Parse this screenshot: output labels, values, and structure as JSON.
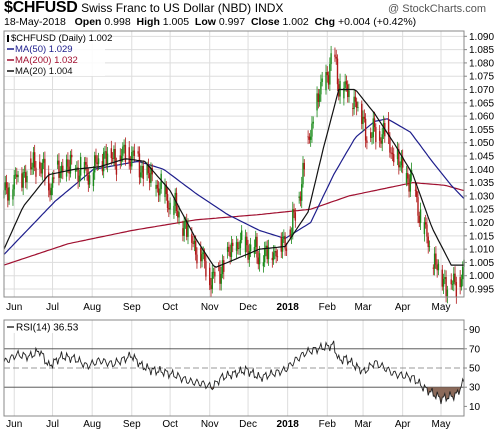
{
  "header": {
    "symbol": "$CHFUSD",
    "description": "Swiss Franc to US Dollar (NBD)",
    "exchange": "INDX",
    "credit": "@ StockCharts.com",
    "date": "18-May-2018",
    "open_label": "Open",
    "open": "0.998",
    "high_label": "High",
    "high": "1.005",
    "low_label": "Low",
    "low": "0.997",
    "close_label": "Close",
    "close": "1.002",
    "chg_label": "Chg",
    "chg": "+0.004 (+0.42%)"
  },
  "colors": {
    "ma50": "#1e1e8c",
    "ma200": "#a01030",
    "ma20": "#111111",
    "candle_up": "#1a8a1a",
    "candle_down": "#b01818",
    "rsi_fill_low": "#8b6a5a",
    "grid": "#dddddd",
    "rsi_line": "#222222"
  },
  "chart_data": [
    {
      "type": "candlestick",
      "title": "$CHFUSD (Daily) 1.002",
      "legend": [
        {
          "name": "$CHFUSD (Daily) 1.002",
          "color": "#000000"
        },
        {
          "name": "MA(50) 1.029",
          "color": "#1e1e8c"
        },
        {
          "name": "MA(200) 1.032",
          "color": "#a01030"
        },
        {
          "name": "MA(20) 1.004",
          "color": "#111111"
        }
      ],
      "legend_placement": "top-left",
      "y_axis": "right",
      "ylim": [
        0.992,
        1.092
      ],
      "y_ticks": [
        0.995,
        1.0,
        1.005,
        1.01,
        1.015,
        1.02,
        1.025,
        1.03,
        1.035,
        1.04,
        1.045,
        1.05,
        1.055,
        1.06,
        1.065,
        1.07,
        1.075,
        1.08,
        1.085,
        1.09
      ],
      "y_tick_labels": [
        "0.995",
        "1.000",
        "1.005",
        "1.010",
        "1.015",
        "1.020",
        "1.025",
        "1.030",
        "1.035",
        "1.040",
        "1.045",
        "1.050",
        "1.055",
        "1.060",
        "1.065",
        "1.070",
        "1.075",
        "1.080",
        "1.085",
        "1.090"
      ],
      "x_labels": [
        {
          "label": "Jun",
          "day": 8
        },
        {
          "label": "Jul",
          "day": 38
        },
        {
          "label": "Aug",
          "day": 69
        },
        {
          "label": "Sep",
          "day": 100
        },
        {
          "label": "Oct",
          "day": 130
        },
        {
          "label": "Nov",
          "day": 161
        },
        {
          "label": "Dec",
          "day": 191
        },
        {
          "label": "2018",
          "day": 222,
          "bold": true
        },
        {
          "label": "Feb",
          "day": 253
        },
        {
          "label": "Mar",
          "day": 281
        },
        {
          "label": "Apr",
          "day": 312
        },
        {
          "label": "May",
          "day": 342
        }
      ],
      "x_range_days": [
        0,
        360
      ],
      "price_path": [
        [
          0,
          1.03
        ],
        [
          10,
          1.037
        ],
        [
          20,
          1.04
        ],
        [
          27,
          1.043
        ],
        [
          35,
          1.034
        ],
        [
          45,
          1.04
        ],
        [
          55,
          1.041
        ],
        [
          68,
          1.038
        ],
        [
          78,
          1.046
        ],
        [
          88,
          1.044
        ],
        [
          100,
          1.046
        ],
        [
          106,
          1.041
        ],
        [
          115,
          1.036
        ],
        [
          124,
          1.032
        ],
        [
          135,
          1.024
        ],
        [
          145,
          1.016
        ],
        [
          155,
          1.006
        ],
        [
          163,
          0.998
        ],
        [
          170,
          1.003
        ],
        [
          180,
          1.011
        ],
        [
          190,
          1.012
        ],
        [
          200,
          1.007
        ],
        [
          210,
          1.009
        ],
        [
          220,
          1.012
        ],
        [
          228,
          1.022
        ],
        [
          236,
          1.045
        ],
        [
          245,
          1.065
        ],
        [
          252,
          1.075
        ],
        [
          258,
          1.083
        ],
        [
          262,
          1.072
        ],
        [
          268,
          1.069
        ],
        [
          275,
          1.066
        ],
        [
          280,
          1.06
        ],
        [
          285,
          1.052
        ],
        [
          292,
          1.054
        ],
        [
          300,
          1.053
        ],
        [
          305,
          1.044
        ],
        [
          312,
          1.04
        ],
        [
          320,
          1.034
        ],
        [
          330,
          1.015
        ],
        [
          338,
          1.004
        ],
        [
          345,
          0.998
        ],
        [
          352,
          0.996
        ],
        [
          360,
          1.002
        ]
      ],
      "series": [
        {
          "name": "MA(50)",
          "path": [
            [
              0,
              1.008
            ],
            [
              40,
              1.028
            ],
            [
              70,
              1.04
            ],
            [
              105,
              1.043
            ],
            [
              125,
              1.04
            ],
            [
              150,
              1.031
            ],
            [
              175,
              1.023
            ],
            [
              200,
              1.017
            ],
            [
              220,
              1.014
            ],
            [
              240,
              1.02
            ],
            [
              258,
              1.038
            ],
            [
              275,
              1.052
            ],
            [
              290,
              1.058
            ],
            [
              300,
              1.059
            ],
            [
              318,
              1.054
            ],
            [
              335,
              1.043
            ],
            [
              350,
              1.034
            ],
            [
              360,
              1.029
            ]
          ]
        },
        {
          "name": "MA(200)",
          "path": [
            [
              0,
              1.004
            ],
            [
              50,
              1.012
            ],
            [
              100,
              1.017
            ],
            [
              150,
              1.021
            ],
            [
              200,
              1.023
            ],
            [
              240,
              1.025
            ],
            [
              270,
              1.03
            ],
            [
              300,
              1.033
            ],
            [
              320,
              1.035
            ],
            [
              345,
              1.034
            ],
            [
              360,
              1.032
            ]
          ]
        },
        {
          "name": "MA(20)",
          "path": [
            [
              0,
              1.01
            ],
            [
              15,
              1.026
            ],
            [
              35,
              1.038
            ],
            [
              55,
              1.04
            ],
            [
              75,
              1.041
            ],
            [
              95,
              1.044
            ],
            [
              110,
              1.043
            ],
            [
              130,
              1.032
            ],
            [
              150,
              1.014
            ],
            [
              165,
              1.003
            ],
            [
              180,
              1.006
            ],
            [
              200,
              1.01
            ],
            [
              220,
              1.011
            ],
            [
              238,
              1.024
            ],
            [
              250,
              1.048
            ],
            [
              262,
              1.07
            ],
            [
              275,
              1.07
            ],
            [
              290,
              1.061
            ],
            [
              305,
              1.05
            ],
            [
              320,
              1.038
            ],
            [
              335,
              1.018
            ],
            [
              350,
              1.004
            ],
            [
              360,
              1.004
            ]
          ]
        }
      ]
    },
    {
      "type": "line",
      "title": "RSI(14) 36.53",
      "legend": [
        {
          "name": "RSI(14) 36.53",
          "color": "#000000"
        }
      ],
      "y_axis": "right",
      "ylim": [
        0,
        100
      ],
      "y_ticks": [
        10,
        30,
        50,
        70,
        90
      ],
      "y_tick_labels": [
        "10",
        "30",
        "50",
        "70",
        "90"
      ],
      "reference_lines": [
        70,
        50,
        30
      ],
      "series": [
        {
          "name": "RSI(14)",
          "path": [
            [
              0,
              56
            ],
            [
              10,
              64
            ],
            [
              20,
              62
            ],
            [
              28,
              68
            ],
            [
              35,
              52
            ],
            [
              45,
              62
            ],
            [
              55,
              60
            ],
            [
              65,
              52
            ],
            [
              75,
              58
            ],
            [
              85,
              54
            ],
            [
              95,
              60
            ],
            [
              100,
              63
            ],
            [
              108,
              52
            ],
            [
              115,
              48
            ],
            [
              125,
              46
            ],
            [
              135,
              42
            ],
            [
              145,
              36
            ],
            [
              155,
              34
            ],
            [
              163,
              30
            ],
            [
              170,
              40
            ],
            [
              180,
              44
            ],
            [
              190,
              48
            ],
            [
              200,
              40
            ],
            [
              210,
              44
            ],
            [
              220,
              48
            ],
            [
              228,
              58
            ],
            [
              236,
              66
            ],
            [
              245,
              70
            ],
            [
              252,
              72
            ],
            [
              258,
              74
            ],
            [
              262,
              58
            ],
            [
              268,
              60
            ],
            [
              275,
              52
            ],
            [
              282,
              46
            ],
            [
              290,
              56
            ],
            [
              298,
              50
            ],
            [
              305,
              44
            ],
            [
              312,
              42
            ],
            [
              320,
              40
            ],
            [
              328,
              30
            ],
            [
              335,
              24
            ],
            [
              342,
              18
            ],
            [
              348,
              20
            ],
            [
              354,
              22
            ],
            [
              360,
              36
            ]
          ]
        }
      ]
    }
  ]
}
